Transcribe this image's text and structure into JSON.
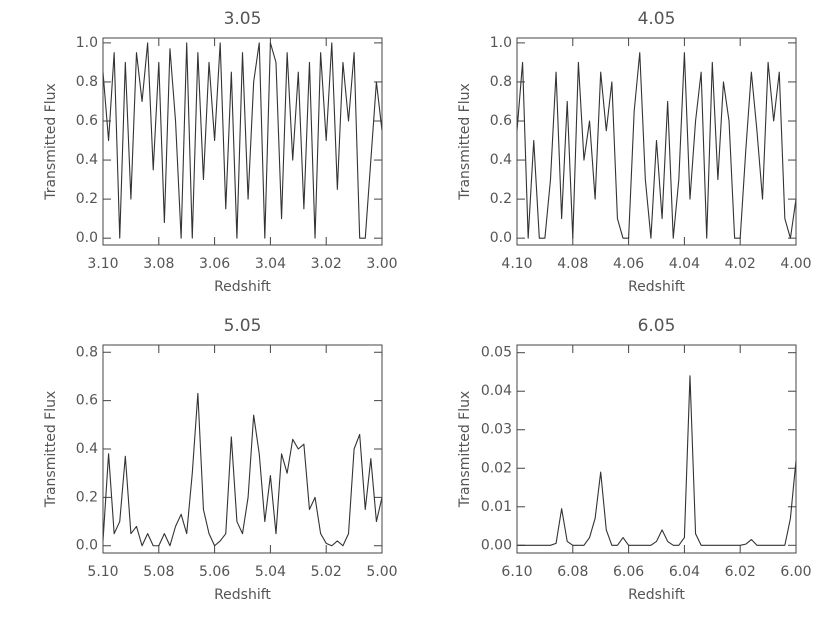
{
  "chart_data": [
    {
      "type": "line",
      "title": "3.05",
      "xlabel": "Redshift",
      "ylabel": "Transmitted Flux",
      "color": "#333333",
      "xlim": [
        3.1,
        3.0
      ],
      "ylim": [
        -0.035,
        1.025
      ],
      "xticks": [
        {
          "value": 3.1,
          "label": "3.10"
        },
        3.08,
        3.06,
        3.04,
        3.02,
        {
          "value": 3.0,
          "label": "3.00"
        }
      ],
      "yticks": [
        {
          "value": 0,
          "label": "0.0"
        },
        0.2,
        0.4,
        0.6,
        0.8,
        {
          "value": 1,
          "label": "1.0"
        }
      ],
      "x": [
        3.1,
        3.098,
        3.096,
        3.094,
        3.092,
        3.09,
        3.088,
        3.086,
        3.084,
        3.082,
        3.08,
        3.078,
        3.076,
        3.074,
        3.072,
        3.07,
        3.068,
        3.066,
        3.064,
        3.062,
        3.06,
        3.058,
        3.056,
        3.054,
        3.052,
        3.05,
        3.048,
        3.046,
        3.044,
        3.042,
        3.04,
        3.038,
        3.036,
        3.034,
        3.032,
        3.03,
        3.028,
        3.026,
        3.024,
        3.022,
        3.02,
        3.018,
        3.016,
        3.014,
        3.012,
        3.01,
        3.008,
        3.006,
        3.004,
        3.002,
        3.0
      ],
      "values": [
        0.85,
        0.5,
        0.95,
        0.0,
        0.9,
        0.2,
        0.95,
        0.7,
        1.0,
        0.35,
        0.9,
        0.08,
        0.97,
        0.6,
        0.0,
        1.0,
        0.0,
        0.95,
        0.3,
        0.9,
        0.5,
        1.0,
        0.15,
        0.85,
        0.0,
        0.95,
        0.2,
        0.8,
        1.0,
        0.0,
        1.0,
        0.9,
        0.1,
        0.95,
        0.4,
        0.85,
        0.15,
        0.9,
        0.0,
        0.95,
        0.5,
        1.0,
        0.25,
        0.9,
        0.6,
        0.95,
        0.0,
        0.0,
        0.4,
        0.8,
        0.55
      ]
    },
    {
      "type": "line",
      "title": "4.05",
      "xlabel": "Redshift",
      "ylabel": "Transmitted Flux",
      "color": "#333333",
      "xlim": [
        4.1,
        4.0
      ],
      "ylim": [
        -0.035,
        1.025
      ],
      "xticks": [
        {
          "value": 4.1,
          "label": "4.10"
        },
        4.08,
        4.06,
        4.04,
        4.02,
        {
          "value": 4.0,
          "label": "4.00"
        }
      ],
      "yticks": [
        {
          "value": 0,
          "label": "0.0"
        },
        0.2,
        0.4,
        0.6,
        0.8,
        {
          "value": 1,
          "label": "1.0"
        }
      ],
      "x": [
        4.1,
        4.098,
        4.096,
        4.094,
        4.092,
        4.09,
        4.088,
        4.086,
        4.084,
        4.082,
        4.08,
        4.078,
        4.076,
        4.074,
        4.072,
        4.07,
        4.068,
        4.066,
        4.064,
        4.062,
        4.06,
        4.058,
        4.056,
        4.054,
        4.052,
        4.05,
        4.048,
        4.046,
        4.044,
        4.042,
        4.04,
        4.038,
        4.036,
        4.034,
        4.032,
        4.03,
        4.028,
        4.026,
        4.024,
        4.022,
        4.02,
        4.018,
        4.016,
        4.014,
        4.012,
        4.01,
        4.008,
        4.006,
        4.004,
        4.002,
        4.0
      ],
      "values": [
        0.55,
        0.9,
        0.0,
        0.5,
        0.0,
        0.0,
        0.3,
        0.85,
        0.1,
        0.7,
        0.0,
        0.9,
        0.4,
        0.6,
        0.2,
        0.85,
        0.55,
        0.8,
        0.1,
        0.0,
        0.0,
        0.65,
        0.95,
        0.3,
        0.0,
        0.5,
        0.1,
        0.7,
        0.0,
        0.3,
        0.95,
        0.2,
        0.6,
        0.85,
        0.0,
        0.9,
        0.3,
        0.8,
        0.6,
        0.0,
        0.0,
        0.45,
        0.85,
        0.55,
        0.2,
        0.9,
        0.6,
        0.85,
        0.1,
        0.0,
        0.2
      ]
    },
    {
      "type": "line",
      "title": "5.05",
      "xlabel": "Redshift",
      "ylabel": "Transmitted Flux",
      "color": "#333333",
      "xlim": [
        5.1,
        5.0
      ],
      "ylim": [
        -0.03,
        0.83
      ],
      "xticks": [
        {
          "value": 5.1,
          "label": "5.10"
        },
        5.08,
        5.06,
        5.04,
        5.02,
        {
          "value": 5.0,
          "label": "5.00"
        }
      ],
      "yticks": [
        {
          "value": 0,
          "label": "0.0"
        },
        0.2,
        0.4,
        0.6,
        0.8
      ],
      "x": [
        5.1,
        5.098,
        5.096,
        5.094,
        5.092,
        5.09,
        5.088,
        5.086,
        5.084,
        5.082,
        5.08,
        5.078,
        5.076,
        5.074,
        5.072,
        5.07,
        5.068,
        5.066,
        5.064,
        5.062,
        5.06,
        5.058,
        5.056,
        5.054,
        5.052,
        5.05,
        5.048,
        5.046,
        5.044,
        5.042,
        5.04,
        5.038,
        5.036,
        5.034,
        5.032,
        5.03,
        5.028,
        5.026,
        5.024,
        5.022,
        5.02,
        5.018,
        5.016,
        5.014,
        5.012,
        5.01,
        5.008,
        5.006,
        5.004,
        5.002,
        5.0
      ],
      "values": [
        0.02,
        0.38,
        0.05,
        0.1,
        0.37,
        0.05,
        0.08,
        0.0,
        0.05,
        0.0,
        0.0,
        0.05,
        0.0,
        0.08,
        0.13,
        0.05,
        0.3,
        0.63,
        0.15,
        0.05,
        0.0,
        0.02,
        0.05,
        0.45,
        0.1,
        0.05,
        0.2,
        0.54,
        0.38,
        0.1,
        0.29,
        0.05,
        0.38,
        0.3,
        0.44,
        0.4,
        0.42,
        0.15,
        0.2,
        0.05,
        0.01,
        0.0,
        0.02,
        0.0,
        0.05,
        0.4,
        0.46,
        0.15,
        0.36,
        0.1,
        0.2
      ]
    },
    {
      "type": "line",
      "title": "6.05",
      "xlabel": "Redshift",
      "ylabel": "Transmitted Flux",
      "color": "#333333",
      "xlim": [
        6.1,
        6.0
      ],
      "ylim": [
        -0.002,
        0.052
      ],
      "xticks": [
        {
          "value": 6.1,
          "label": "6.10"
        },
        6.08,
        6.06,
        6.04,
        6.02,
        {
          "value": 6.0,
          "label": "6.00"
        }
      ],
      "yticks": [
        {
          "value": 0,
          "label": "0.00"
        },
        0.01,
        0.02,
        0.03,
        0.04,
        0.05
      ],
      "x": [
        6.1,
        6.098,
        6.096,
        6.094,
        6.092,
        6.09,
        6.088,
        6.086,
        6.084,
        6.082,
        6.08,
        6.078,
        6.076,
        6.074,
        6.072,
        6.07,
        6.068,
        6.066,
        6.064,
        6.062,
        6.06,
        6.058,
        6.056,
        6.054,
        6.052,
        6.05,
        6.048,
        6.046,
        6.044,
        6.042,
        6.04,
        6.038,
        6.036,
        6.034,
        6.032,
        6.03,
        6.028,
        6.026,
        6.024,
        6.022,
        6.02,
        6.018,
        6.016,
        6.014,
        6.012,
        6.01,
        6.008,
        6.006,
        6.004,
        6.002,
        6.0
      ],
      "values": [
        0,
        0,
        0,
        0,
        0,
        0,
        0,
        0.0005,
        0.0095,
        0.001,
        0,
        0,
        0,
        0.002,
        0.007,
        0.019,
        0.004,
        0,
        0,
        0.002,
        0,
        0,
        0,
        0,
        0,
        0.001,
        0.004,
        0.001,
        0,
        0,
        0.002,
        0.044,
        0.003,
        0,
        0,
        0,
        0,
        0,
        0,
        0,
        0,
        0.0003,
        0.0015,
        0,
        0,
        0,
        0,
        0,
        0,
        0.007,
        0.022
      ]
    }
  ]
}
